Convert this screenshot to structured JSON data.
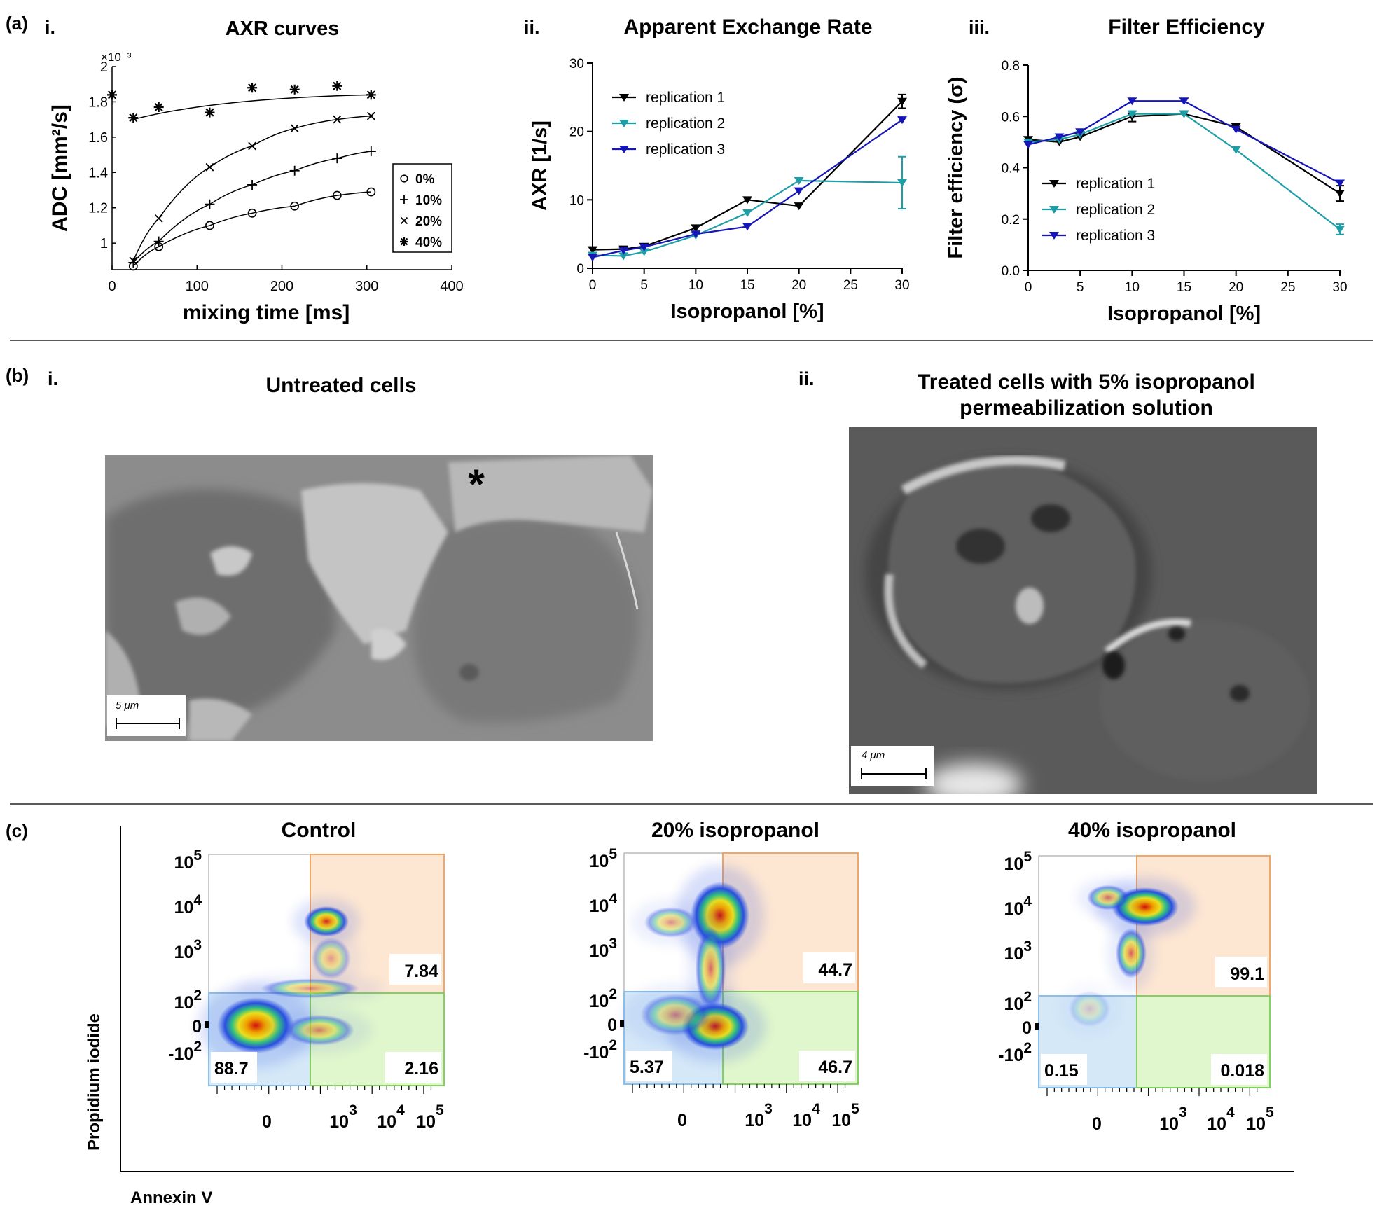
{
  "panels": {
    "a_label": "(a)",
    "a_i": "i.",
    "a_ii": "ii.",
    "a_iii": "iii.",
    "b_label": "(b)",
    "b_i": "i.",
    "b_ii": "ii.",
    "c_label": "(c)"
  },
  "sem": {
    "untreated_title": "Untreated cells",
    "treated_title_line1": "Treated cells with 5% isopropanol",
    "treated_title_line2": "permeabilization solution",
    "scale_untreated": "5 μm",
    "scale_treated": "4 μm",
    "asterisk": "*"
  },
  "flow": {
    "ylabel": "Propidium iodide",
    "xlabel": "Annexin V",
    "y_ticks": [
      "10^5",
      "10^4",
      "10^3",
      "10^2",
      "0",
      "-10^2"
    ],
    "x_ticks": [
      "0",
      "10^3",
      "10^4",
      "10^5"
    ]
  },
  "chart_data": [
    {
      "type": "scatter",
      "title": "AXR curves",
      "xlabel": "mixing time [ms]",
      "ylabel": "ADC [mm²/s]",
      "y_multiplier": "×10⁻³",
      "xlim": [
        0,
        400
      ],
      "ylim": [
        0.85,
        2.0
      ],
      "x_ticks": [
        0,
        100,
        200,
        300,
        400
      ],
      "y_ticks": [
        1,
        1.2,
        1.4,
        1.6,
        1.8,
        2
      ],
      "legend_position": "right",
      "series": [
        {
          "name": "0%",
          "marker": "circle",
          "x": [
            25,
            55,
            115,
            165,
            215,
            265,
            305
          ],
          "y": [
            0.87,
            0.98,
            1.1,
            1.17,
            1.21,
            1.27,
            1.29
          ]
        },
        {
          "name": "10%",
          "marker": "plus",
          "x": [
            25,
            55,
            115,
            165,
            215,
            265,
            305
          ],
          "y": [
            0.89,
            1.01,
            1.22,
            1.33,
            1.41,
            1.48,
            1.52
          ]
        },
        {
          "name": "20%",
          "marker": "cross",
          "x": [
            25,
            55,
            115,
            165,
            215,
            265,
            305
          ],
          "y": [
            0.9,
            1.14,
            1.43,
            1.55,
            1.65,
            1.7,
            1.72
          ]
        },
        {
          "name": "40%",
          "marker": "asterisk",
          "x": [
            0,
            25,
            55,
            115,
            165,
            215,
            265,
            305
          ],
          "y": [
            1.84,
            1.71,
            1.77,
            1.74,
            1.88,
            1.87,
            1.89,
            1.84
          ]
        }
      ]
    },
    {
      "type": "line",
      "title": "Apparent Exchange Rate",
      "xlabel": "Isopropanol [%]",
      "ylabel": "AXR [1/s]",
      "xlim": [
        0,
        30
      ],
      "ylim": [
        0,
        30
      ],
      "x_ticks": [
        0,
        5,
        10,
        15,
        20,
        25,
        30
      ],
      "y_ticks": [
        0,
        10,
        20,
        30
      ],
      "legend_position": "top-left",
      "series": [
        {
          "name": "replication 1",
          "color": "#000000",
          "x": [
            0,
            3,
            5,
            10,
            15,
            20,
            30
          ],
          "y": [
            2.7,
            2.8,
            3.2,
            5.9,
            10.0,
            9.1,
            24.4
          ],
          "err": [
            0,
            0,
            0,
            0,
            0,
            0,
            1.0
          ]
        },
        {
          "name": "replication 2",
          "color": "#1e9ea6",
          "x": [
            0,
            3,
            5,
            10,
            15,
            20,
            30
          ],
          "y": [
            1.9,
            1.8,
            2.4,
            4.8,
            8.1,
            12.8,
            12.5
          ],
          "err": [
            0,
            0,
            0,
            0,
            0,
            0,
            3.8
          ]
        },
        {
          "name": "replication 3",
          "color": "#1515b8",
          "x": [
            0,
            3,
            5,
            10,
            15,
            20,
            30
          ],
          "y": [
            1.6,
            2.6,
            3.1,
            5.0,
            6.1,
            11.3,
            21.7
          ],
          "err": [
            0,
            0,
            0,
            0,
            0,
            0,
            0
          ]
        }
      ]
    },
    {
      "type": "line",
      "title": "Filter Efficiency",
      "xlabel": "Isopropanol [%]",
      "ylabel": "Filter efficiency (σ)",
      "xlim": [
        0,
        30
      ],
      "ylim": [
        0,
        0.8
      ],
      "x_ticks": [
        0,
        5,
        10,
        15,
        20,
        25,
        30
      ],
      "y_ticks": [
        0.0,
        0.2,
        0.4,
        0.6,
        0.8
      ],
      "legend_position": "bottom-left",
      "series": [
        {
          "name": "replication 1",
          "color": "#000000",
          "x": [
            0,
            3,
            5,
            10,
            15,
            20,
            30
          ],
          "y": [
            0.51,
            0.5,
            0.52,
            0.6,
            0.61,
            0.56,
            0.3
          ],
          "err": [
            0,
            0,
            0,
            0.02,
            0,
            0,
            0.03
          ]
        },
        {
          "name": "replication 2",
          "color": "#1e9ea6",
          "x": [
            0,
            3,
            5,
            10,
            15,
            20,
            30
          ],
          "y": [
            0.5,
            0.51,
            0.53,
            0.61,
            0.61,
            0.47,
            0.16
          ],
          "err": [
            0,
            0,
            0,
            0,
            0,
            0,
            0.02
          ]
        },
        {
          "name": "replication 3",
          "color": "#1515b8",
          "x": [
            0,
            3,
            5,
            10,
            15,
            20,
            30
          ],
          "y": [
            0.49,
            0.52,
            0.54,
            0.66,
            0.66,
            0.55,
            0.34
          ],
          "err": [
            0,
            0,
            0,
            0,
            0,
            0,
            0
          ]
        }
      ]
    },
    {
      "type": "scatter",
      "title": "Control",
      "quadrants": {
        "upper_right": "7.84",
        "lower_left": "88.7",
        "lower_right": "2.16"
      }
    },
    {
      "type": "scatter",
      "title": "20% isopropanol",
      "quadrants": {
        "upper_right": "44.7",
        "lower_left": "5.37",
        "lower_right": "46.7"
      }
    },
    {
      "type": "scatter",
      "title": "40% isopropanol",
      "quadrants": {
        "upper_right": "99.1",
        "lower_left": "0.15",
        "lower_right": "0.018"
      }
    }
  ]
}
